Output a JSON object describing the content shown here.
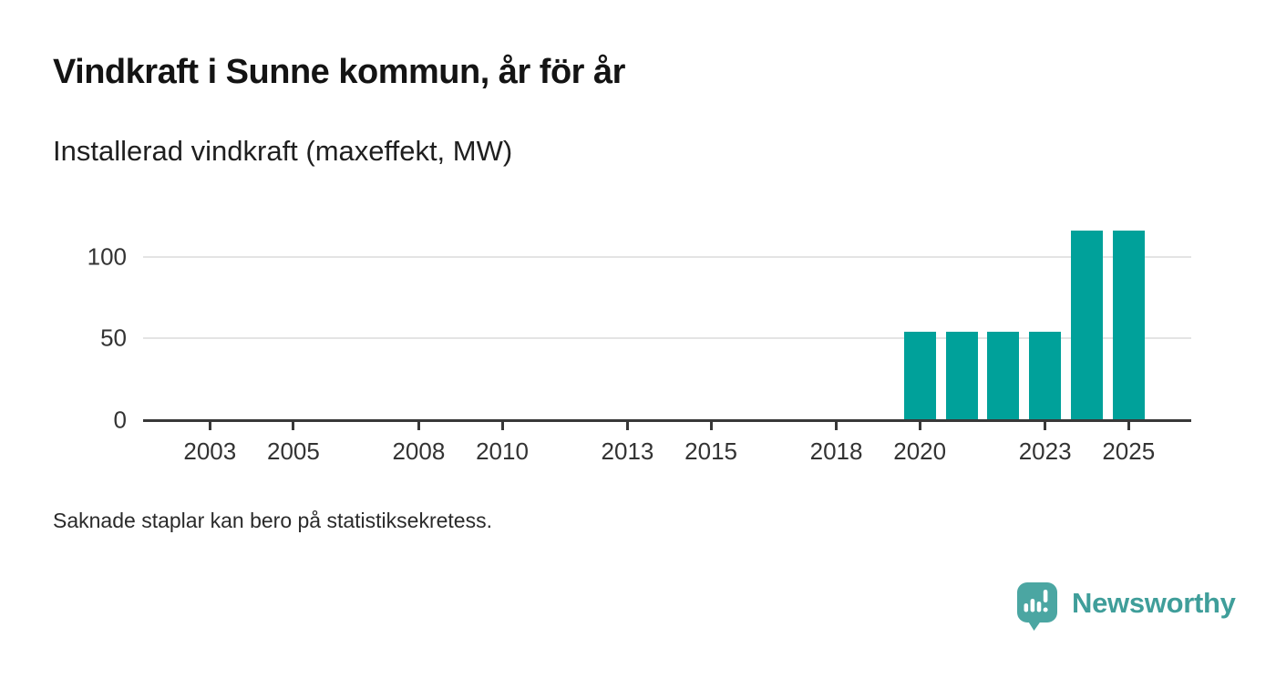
{
  "title": "Vindkraft i Sunne kommun, år för år",
  "subtitle": "Installerad vindkraft (maxeffekt, MW)",
  "footnote": "Saknade staplar kan bero på statistiksekretess.",
  "branding": {
    "name": "Newsworthy",
    "icon": "speech-bubble-bar-chart-icon",
    "icon_color": "#4BA6A2",
    "text_color": "#3F9E9A"
  },
  "colors": {
    "bar": "#00A19A",
    "axis": "#383838",
    "grid": "#E4E4E4",
    "tick_text": "#333333",
    "title_text": "#141414"
  },
  "chart_data": {
    "type": "bar",
    "title": "Vindkraft i Sunne kommun, år för år",
    "ylabel": "Installerad vindkraft (maxeffekt, MW)",
    "x": [
      2020,
      2021,
      2022,
      2023,
      2024,
      2025
    ],
    "values": [
      54,
      54,
      54,
      54,
      116,
      116
    ],
    "x_ticks": [
      2003,
      2005,
      2008,
      2010,
      2013,
      2015,
      2018,
      2020,
      2023,
      2025
    ],
    "y_ticks": [
      0,
      50,
      100
    ],
    "xlim": [
      2001.4,
      2026.5
    ],
    "ylim": [
      0,
      130
    ],
    "grid": "horizontal-at-y-ticks",
    "legend": "none",
    "bar_color": "#00A19A",
    "unit": "MW"
  }
}
